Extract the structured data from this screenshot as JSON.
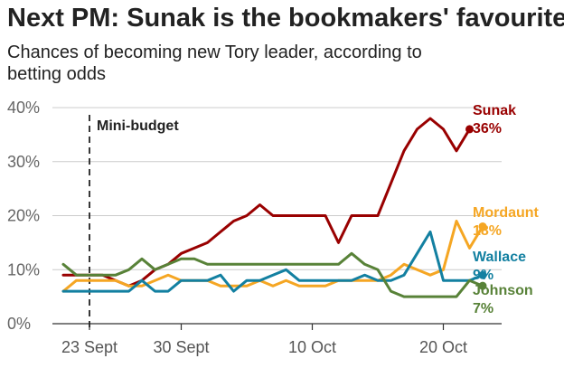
{
  "title": "Next PM: Sunak is the bookmakers' favourite",
  "subtitle": "Chances of becoming new Tory leader, according to betting odds",
  "chart_data": {
    "type": "line",
    "title": "Next PM: Sunak is the bookmakers' favourite",
    "subtitle": "Chances of becoming new Tory leader, according to betting odds",
    "xlabel": "",
    "ylabel": "",
    "ylim": [
      0,
      40
    ],
    "yticks": [
      0,
      10,
      20,
      30,
      40
    ],
    "ytick_labels": [
      "0%",
      "10%",
      "20%",
      "30%",
      "40%"
    ],
    "x_unit": "day (0 = 21 Sept)",
    "xlim": [
      0,
      30.5
    ],
    "xticks": [
      {
        "label": "23 Sept",
        "day": 2
      },
      {
        "label": "30 Sept",
        "day": 9
      },
      {
        "label": "10 Oct",
        "day": 19
      },
      {
        "label": "20 Oct",
        "day": 29
      }
    ],
    "annotation": {
      "label": "Mini-budget",
      "day": 2
    },
    "series": [
      {
        "name": "Sunak",
        "label": "Sunak",
        "value_label": "36%",
        "color": "#990000",
        "points": [
          [
            0,
            9
          ],
          [
            1,
            9
          ],
          [
            2,
            9
          ],
          [
            3,
            9
          ],
          [
            4,
            8
          ],
          [
            5,
            7
          ],
          [
            6,
            8
          ],
          [
            7,
            10
          ],
          [
            8,
            11
          ],
          [
            9,
            13
          ],
          [
            10,
            14
          ],
          [
            11,
            15
          ],
          [
            12,
            17
          ],
          [
            13,
            19
          ],
          [
            14,
            20
          ],
          [
            15,
            22
          ],
          [
            16,
            20
          ],
          [
            17,
            20
          ],
          [
            18,
            20
          ],
          [
            19,
            20
          ],
          [
            20,
            20
          ],
          [
            21,
            15
          ],
          [
            22,
            20
          ],
          [
            23,
            20
          ],
          [
            24,
            20
          ],
          [
            25,
            26
          ],
          [
            26,
            32
          ],
          [
            27,
            36
          ],
          [
            28,
            38
          ],
          [
            29,
            36
          ],
          [
            30,
            32
          ],
          [
            31,
            36
          ]
        ]
      },
      {
        "name": "Mordaunt",
        "label": "Mordaunt",
        "value_label": "18%",
        "color": "#f5a623",
        "points": [
          [
            0,
            6
          ],
          [
            1,
            8
          ],
          [
            2,
            8
          ],
          [
            3,
            8
          ],
          [
            4,
            8
          ],
          [
            5,
            7
          ],
          [
            6,
            7
          ],
          [
            7,
            8
          ],
          [
            8,
            9
          ],
          [
            9,
            8
          ],
          [
            10,
            8
          ],
          [
            11,
            8
          ],
          [
            12,
            7
          ],
          [
            13,
            7
          ],
          [
            14,
            7
          ],
          [
            15,
            8
          ],
          [
            16,
            7
          ],
          [
            17,
            8
          ],
          [
            18,
            7
          ],
          [
            19,
            7
          ],
          [
            20,
            7
          ],
          [
            21,
            8
          ],
          [
            22,
            8
          ],
          [
            23,
            8
          ],
          [
            24,
            8
          ],
          [
            25,
            9
          ],
          [
            26,
            11
          ],
          [
            27,
            10
          ],
          [
            28,
            9
          ],
          [
            29,
            10
          ],
          [
            30,
            19
          ],
          [
            31,
            14
          ],
          [
            32,
            18
          ]
        ]
      },
      {
        "name": "Wallace",
        "label": "Wallace",
        "value_label": "9%",
        "color": "#1380a1",
        "points": [
          [
            0,
            6
          ],
          [
            1,
            6
          ],
          [
            2,
            6
          ],
          [
            3,
            6
          ],
          [
            4,
            6
          ],
          [
            5,
            6
          ],
          [
            6,
            8
          ],
          [
            7,
            6
          ],
          [
            8,
            6
          ],
          [
            9,
            8
          ],
          [
            10,
            8
          ],
          [
            11,
            8
          ],
          [
            12,
            9
          ],
          [
            13,
            6
          ],
          [
            14,
            8
          ],
          [
            15,
            8
          ],
          [
            16,
            9
          ],
          [
            17,
            10
          ],
          [
            18,
            8
          ],
          [
            19,
            8
          ],
          [
            20,
            8
          ],
          [
            21,
            8
          ],
          [
            22,
            8
          ],
          [
            23,
            9
          ],
          [
            24,
            8
          ],
          [
            25,
            8
          ],
          [
            26,
            9
          ],
          [
            27,
            13
          ],
          [
            28,
            17
          ],
          [
            29,
            8
          ],
          [
            30,
            8
          ],
          [
            31,
            8
          ],
          [
            32,
            9
          ]
        ]
      },
      {
        "name": "Johnson",
        "label": "Johnson",
        "value_label": "7%",
        "color": "#588238",
        "points": [
          [
            0,
            11
          ],
          [
            1,
            9
          ],
          [
            2,
            9
          ],
          [
            3,
            9
          ],
          [
            4,
            9
          ],
          [
            5,
            10
          ],
          [
            6,
            12
          ],
          [
            7,
            10
          ],
          [
            8,
            11
          ],
          [
            9,
            12
          ],
          [
            10,
            12
          ],
          [
            11,
            11
          ],
          [
            12,
            11
          ],
          [
            13,
            11
          ],
          [
            14,
            11
          ],
          [
            15,
            11
          ],
          [
            16,
            11
          ],
          [
            17,
            11
          ],
          [
            18,
            11
          ],
          [
            19,
            11
          ],
          [
            20,
            11
          ],
          [
            21,
            11
          ],
          [
            22,
            13
          ],
          [
            23,
            11
          ],
          [
            24,
            10
          ],
          [
            25,
            6
          ],
          [
            26,
            5
          ],
          [
            27,
            5
          ],
          [
            28,
            5
          ],
          [
            29,
            5
          ],
          [
            30,
            5
          ],
          [
            31,
            8
          ],
          [
            32,
            7
          ]
        ]
      }
    ]
  }
}
